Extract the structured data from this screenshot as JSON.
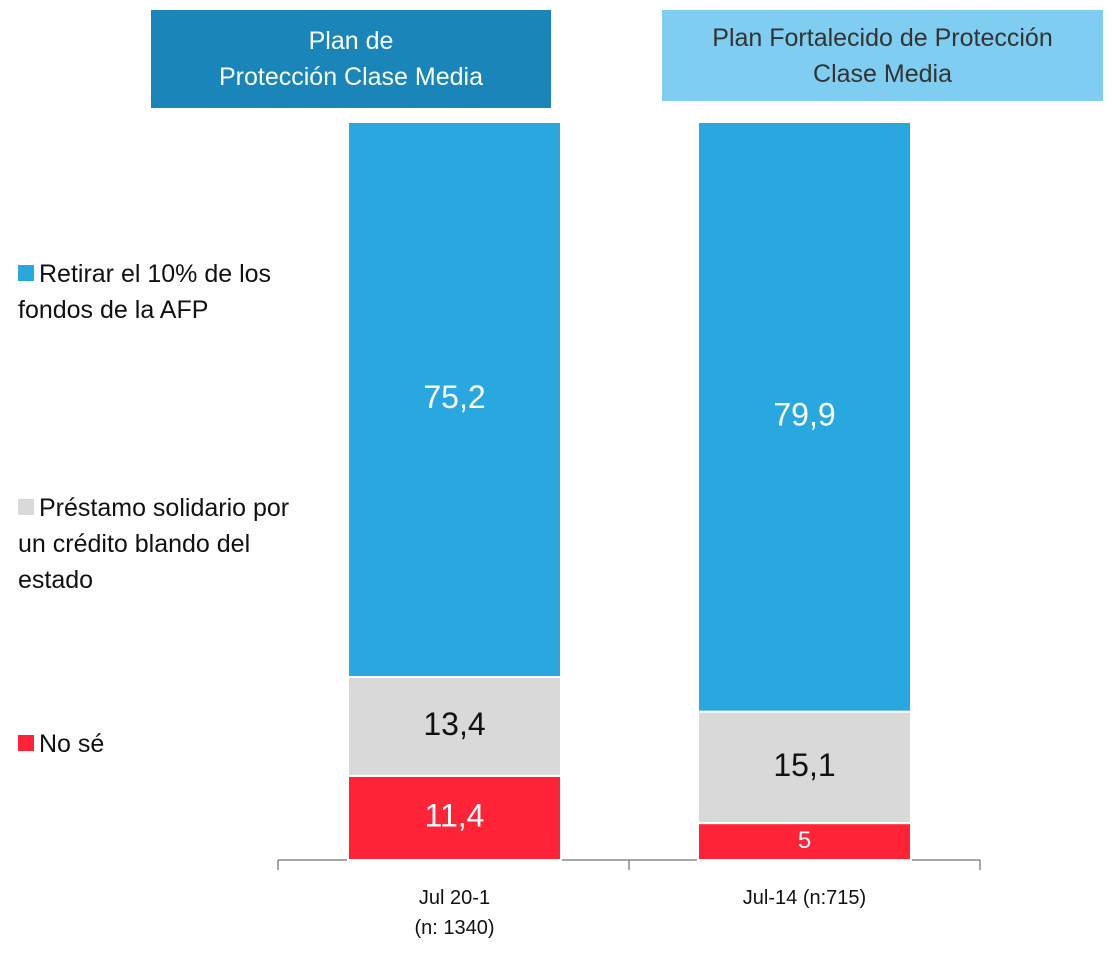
{
  "chart_data": {
    "type": "stacked_bar",
    "annotations": [
      {
        "text": "Plan de\nProtección Clase Media",
        "color": "#1a85b8",
        "text_color": "#ffffff"
      },
      {
        "text": "Plan Fortalecido de Protección\nClase Media",
        "color": "#7fcdf0",
        "text_color": "#333333"
      }
    ],
    "categories": [
      "Jul 20-1\n(n: 1340)",
      "Jul-14 (n:715)"
    ],
    "series": [
      {
        "name": "No sé",
        "color": "#fe2336",
        "label_color": "#ffffff",
        "values": [
          11.4,
          5
        ],
        "value_labels": [
          "11,4",
          "5"
        ]
      },
      {
        "name": "Préstamo solidario por un crédito blando del estado",
        "color": "#d9d9d9",
        "label_color": "#111111",
        "values": [
          13.4,
          15.1
        ],
        "value_labels": [
          "13,4",
          "15,1"
        ]
      },
      {
        "name": "Retirar el 10% de los fondos de la AFP",
        "color": "#29a8e0",
        "label_color": "#ffffff",
        "values": [
          75.2,
          79.9
        ],
        "value_labels": [
          "75,2",
          "79,9"
        ]
      }
    ],
    "ylim": [
      0,
      100
    ]
  }
}
